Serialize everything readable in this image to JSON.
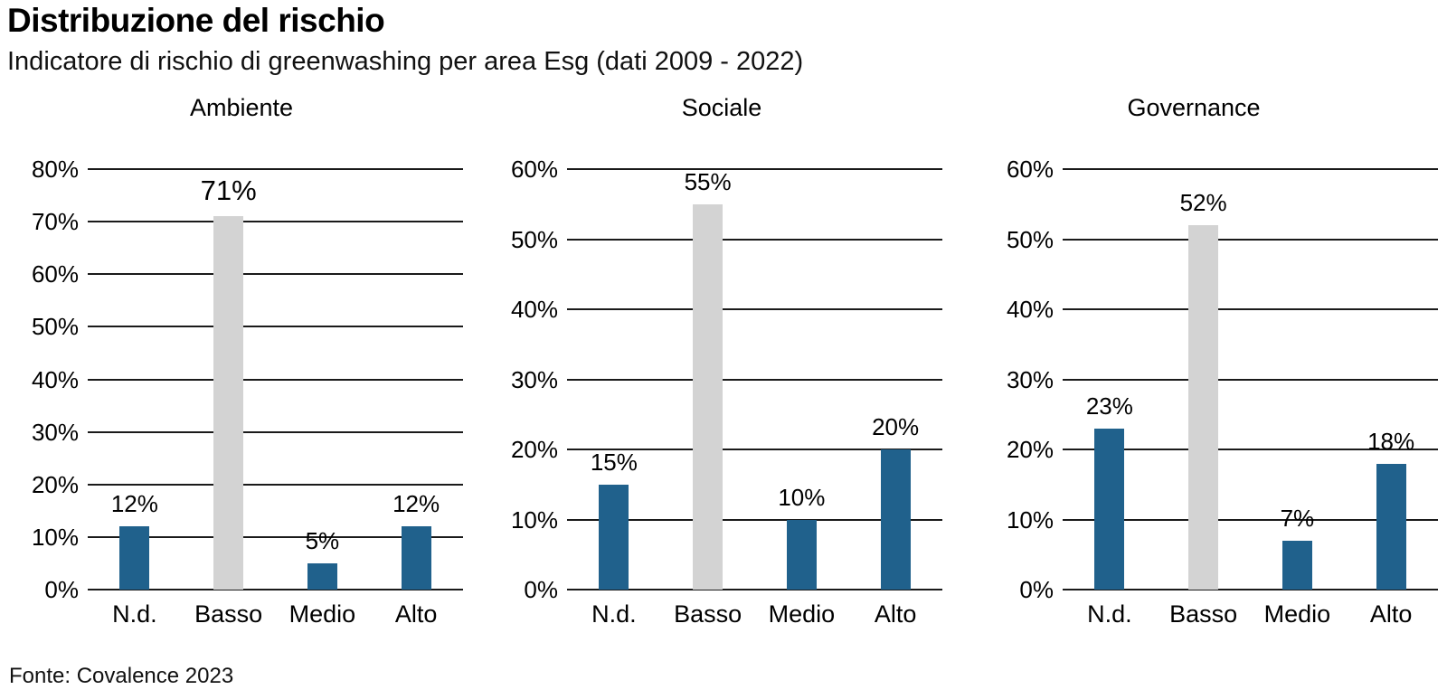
{
  "header": {
    "title": "Distribuzione del rischio",
    "subtitle": "Indicatore di rischio di greenwashing per area Esg (dati 2009 - 2022)"
  },
  "footer": {
    "source": "Fonte: Covalence 2023"
  },
  "colors": {
    "bar_primary": "#20618C",
    "bar_highlight": "#D3D3D3",
    "gridline": "#1A1A1A",
    "text": "#000000"
  },
  "chart_data": [
    {
      "type": "bar",
      "title": "Ambiente",
      "categories": [
        "N.d.",
        "Basso",
        "Medio",
        "Alto"
      ],
      "values": [
        12,
        71,
        5,
        12
      ],
      "value_labels": [
        "12%",
        "71%",
        "5%",
        "12%"
      ],
      "highlight_index": 1,
      "ylim": [
        0,
        80
      ],
      "ytick_step": 10,
      "ytick_labels": [
        "80%",
        "70%",
        "60%",
        "50%",
        "40%",
        "30%",
        "20%",
        "10%",
        "0%"
      ],
      "xlabel": "",
      "ylabel": "",
      "grid": true,
      "legend": false,
      "large_value_label_index": 1
    },
    {
      "type": "bar",
      "title": "Sociale",
      "categories": [
        "N.d.",
        "Basso",
        "Medio",
        "Alto"
      ],
      "values": [
        15,
        55,
        10,
        20
      ],
      "value_labels": [
        "15%",
        "55%",
        "10%",
        "20%"
      ],
      "highlight_index": 1,
      "ylim": [
        0,
        60
      ],
      "ytick_step": 10,
      "ytick_labels": [
        "60%",
        "50%",
        "40%",
        "30%",
        "20%",
        "10%",
        "0%"
      ],
      "xlabel": "",
      "ylabel": "",
      "grid": true,
      "legend": false,
      "large_value_label_index": null
    },
    {
      "type": "bar",
      "title": "Governance",
      "categories": [
        "N.d.",
        "Basso",
        "Medio",
        "Alto"
      ],
      "values": [
        23,
        52,
        7,
        18
      ],
      "value_labels": [
        "23%",
        "52%",
        "7%",
        "18%"
      ],
      "highlight_index": 1,
      "ylim": [
        0,
        60
      ],
      "ytick_step": 10,
      "ytick_labels": [
        "60%",
        "50%",
        "40%",
        "30%",
        "20%",
        "10%",
        "0%"
      ],
      "xlabel": "",
      "ylabel": "",
      "grid": true,
      "legend": false,
      "large_value_label_index": null
    }
  ]
}
